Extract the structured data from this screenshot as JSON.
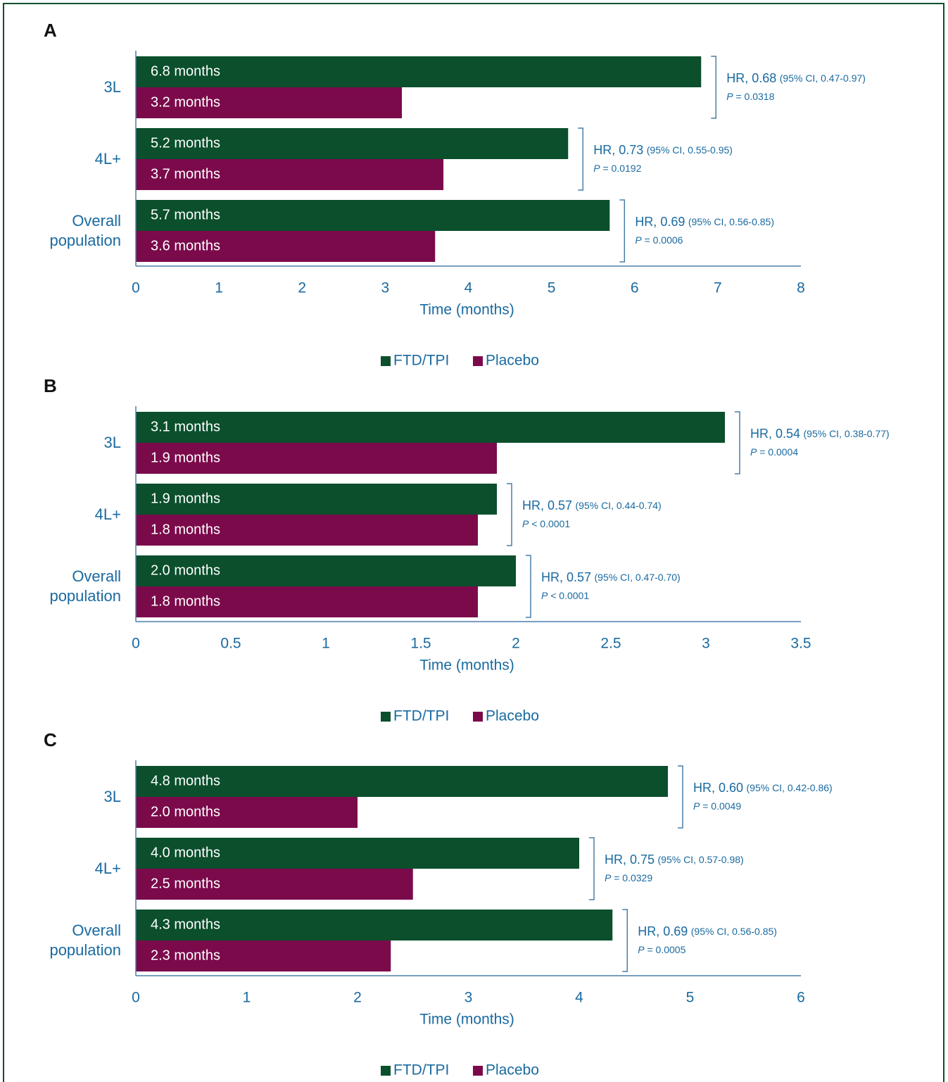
{
  "chart_data": [
    {
      "type": "bar",
      "panel_label": "A",
      "orientation": "horizontal",
      "categories": [
        "3L",
        "4L+",
        "Overall population"
      ],
      "series": [
        {
          "name": "FTD/TPI",
          "color": "#0b4f2c",
          "values": [
            6.8,
            5.2,
            5.7
          ],
          "value_labels": [
            "6.8 months",
            "5.2 months",
            "5.7 months"
          ]
        },
        {
          "name": "Placebo",
          "color": "#7b0a4b",
          "values": [
            3.2,
            3.7,
            3.6
          ],
          "value_labels": [
            "3.2 months",
            "3.7 months",
            "3.6 months"
          ]
        }
      ],
      "annotations": [
        {
          "hr": "HR, 0.68",
          "ci": "(95% CI, 0.47-0.97)",
          "p_symbol": "P",
          "p_value": "= 0.0318"
        },
        {
          "hr": "HR, 0.73",
          "ci": "(95% CI, 0.55-0.95)",
          "p_symbol": "P",
          "p_value": "= 0.0192"
        },
        {
          "hr": "HR, 0.69",
          "ci": "(95% CI, 0.56-0.85)",
          "p_symbol": "P",
          "p_value": "= 0.0006"
        }
      ],
      "xlabel": "Time (months)",
      "xlim": [
        0,
        8
      ],
      "xticks": [
        0,
        1,
        2,
        3,
        4,
        5,
        6,
        7,
        8
      ],
      "legend": "bottom"
    },
    {
      "type": "bar",
      "panel_label": "B",
      "orientation": "horizontal",
      "categories": [
        "3L",
        "4L+",
        "Overall population"
      ],
      "series": [
        {
          "name": "FTD/TPI",
          "color": "#0b4f2c",
          "values": [
            3.1,
            1.9,
            2.0
          ],
          "value_labels": [
            "3.1 months",
            "1.9 months",
            "2.0 months"
          ]
        },
        {
          "name": "Placebo",
          "color": "#7b0a4b",
          "values": [
            1.9,
            1.8,
            1.8
          ],
          "value_labels": [
            "1.9 months",
            "1.8 months",
            "1.8 months"
          ]
        }
      ],
      "annotations": [
        {
          "hr": "HR, 0.54",
          "ci": "(95% CI, 0.38-0.77)",
          "p_symbol": "P",
          "p_value": "= 0.0004"
        },
        {
          "hr": "HR, 0.57",
          "ci": "(95% CI, 0.44-0.74)",
          "p_symbol": "P",
          "p_value": "< 0.0001"
        },
        {
          "hr": "HR, 0.57",
          "ci": "(95% CI, 0.47-0.70)",
          "p_symbol": "P",
          "p_value": "< 0.0001"
        }
      ],
      "xlabel": "Time (months)",
      "xlim": [
        0,
        3.5
      ],
      "xticks": [
        0,
        0.5,
        1,
        1.5,
        2,
        2.5,
        3,
        3.5
      ],
      "legend": "bottom"
    },
    {
      "type": "bar",
      "panel_label": "C",
      "orientation": "horizontal",
      "categories": [
        "3L",
        "4L+",
        "Overall population"
      ],
      "series": [
        {
          "name": "FTD/TPI",
          "color": "#0b4f2c",
          "values": [
            4.8,
            4.0,
            4.3
          ],
          "value_labels": [
            "4.8 months",
            "4.0 months",
            "4.3 months"
          ]
        },
        {
          "name": "Placebo",
          "color": "#7b0a4b",
          "values": [
            2.0,
            2.5,
            2.3
          ],
          "value_labels": [
            "2.0 months",
            "2.5 months",
            "2.3 months"
          ]
        }
      ],
      "annotations": [
        {
          "hr": "HR, 0.60",
          "ci": "(95% CI, 0.42-0.86)",
          "p_symbol": "P",
          "p_value": "= 0.0049"
        },
        {
          "hr": "HR, 0.75",
          "ci": "(95% CI, 0.57-0.98)",
          "p_symbol": "P",
          "p_value": "= 0.0329"
        },
        {
          "hr": "HR, 0.69",
          "ci": "(95% CI, 0.56-0.85)",
          "p_symbol": "P",
          "p_value": "= 0.0005"
        }
      ],
      "xlabel": "Time (months)",
      "xlim": [
        0,
        6
      ],
      "xticks": [
        0,
        1,
        2,
        3,
        4,
        5,
        6
      ],
      "legend": "bottom"
    }
  ]
}
